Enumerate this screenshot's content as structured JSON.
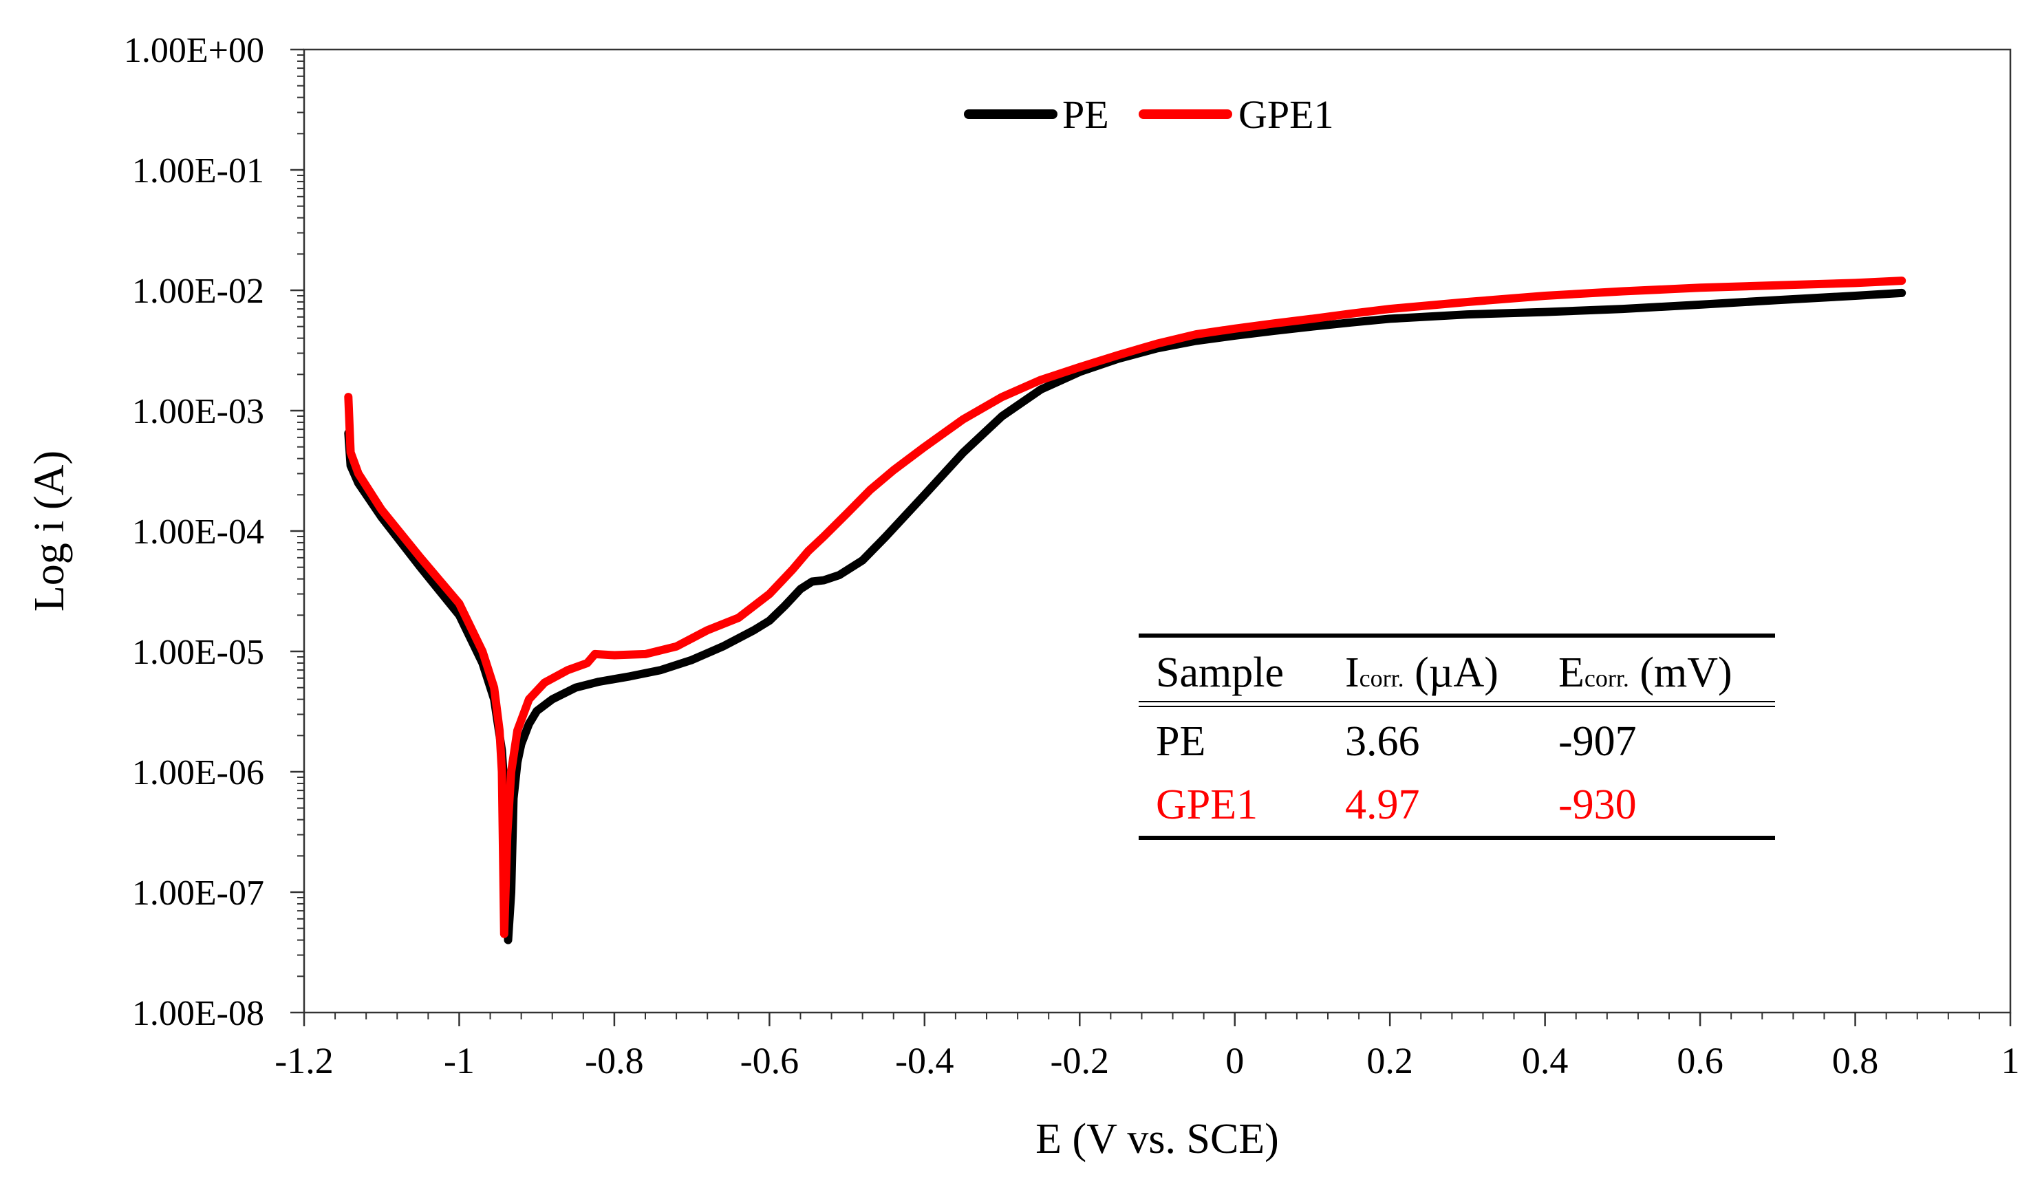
{
  "chart_data": {
    "type": "line",
    "title": "",
    "xlabel": "E (V vs. SCE)",
    "ylabel": "Log i (A)",
    "xlim": [
      -1.2,
      1
    ],
    "x_ticks": [
      -1.2,
      -1,
      -0.8,
      -0.6,
      -0.4,
      -0.2,
      0,
      0.2,
      0.4,
      0.6,
      0.8,
      1
    ],
    "x_tick_labels": [
      "-1.2",
      "-1",
      "-0.8",
      "-0.6",
      "-0.4",
      "-0.2",
      "0",
      "0.2",
      "0.4",
      "0.6",
      "0.8",
      "1"
    ],
    "y_scale": "log",
    "ylim": [
      1e-08,
      1
    ],
    "y_ticks": [
      1e-08,
      1e-07,
      1e-06,
      1e-05,
      0.0001,
      0.001,
      0.01,
      0.1,
      1
    ],
    "y_tick_labels": [
      "1.00E-08",
      "1.00E-07",
      "1.00E-06",
      "1.00E-05",
      "1.00E-04",
      "1.00E-03",
      "1.00E-02",
      "1.00E-01",
      "1.00E+00"
    ],
    "grid": false,
    "legend_position": "top-center",
    "series": [
      {
        "name": "PE",
        "color": "#000000",
        "x": [
          -1.143,
          -1.14,
          -1.13,
          -1.1,
          -1.05,
          -1.0,
          -0.97,
          -0.955,
          -0.945,
          -0.94,
          -0.937,
          -0.933,
          -0.93,
          -0.925,
          -0.92,
          -0.91,
          -0.9,
          -0.88,
          -0.85,
          -0.82,
          -0.78,
          -0.74,
          -0.7,
          -0.66,
          -0.62,
          -0.6,
          -0.58,
          -0.56,
          -0.545,
          -0.53,
          -0.51,
          -0.48,
          -0.45,
          -0.4,
          -0.35,
          -0.3,
          -0.25,
          -0.2,
          -0.15,
          -0.1,
          -0.05,
          0.0,
          0.05,
          0.1,
          0.15,
          0.2,
          0.3,
          0.4,
          0.5,
          0.6,
          0.7,
          0.8,
          0.86
        ],
        "values": [
          0.00065,
          0.00035,
          0.00025,
          0.00013,
          5e-05,
          2e-05,
          8e-06,
          4e-06,
          1.5e-06,
          5e-07,
          4e-08,
          1e-07,
          6e-07,
          1.2e-06,
          1.7e-06,
          2.5e-06,
          3.2e-06,
          4e-06,
          5e-06,
          5.6e-06,
          6.2e-06,
          7e-06,
          8.5e-06,
          1.1e-05,
          1.5e-05,
          1.8e-05,
          2.4e-05,
          3.3e-05,
          3.8e-05,
          3.9e-05,
          4.3e-05,
          5.7e-05,
          9e-05,
          0.0002,
          0.00045,
          0.0009,
          0.0015,
          0.0021,
          0.0027,
          0.0033,
          0.0038,
          0.0042,
          0.0046,
          0.005,
          0.0054,
          0.0058,
          0.0063,
          0.0066,
          0.007,
          0.0076,
          0.0083,
          0.009,
          0.0095
        ]
      },
      {
        "name": "GPE1",
        "color": "#ff0000",
        "x": [
          -1.143,
          -1.14,
          -1.13,
          -1.1,
          -1.05,
          -1.0,
          -0.97,
          -0.955,
          -0.948,
          -0.945,
          -0.942,
          -0.938,
          -0.933,
          -0.925,
          -0.91,
          -0.89,
          -0.86,
          -0.835,
          -0.825,
          -0.8,
          -0.76,
          -0.72,
          -0.68,
          -0.64,
          -0.6,
          -0.57,
          -0.55,
          -0.53,
          -0.5,
          -0.47,
          -0.44,
          -0.4,
          -0.35,
          -0.3,
          -0.25,
          -0.2,
          -0.15,
          -0.1,
          -0.05,
          0.0,
          0.05,
          0.1,
          0.15,
          0.2,
          0.3,
          0.4,
          0.5,
          0.6,
          0.7,
          0.8,
          0.86
        ],
        "values": [
          0.0013,
          0.00045,
          0.0003,
          0.00015,
          6e-05,
          2.5e-05,
          1e-05,
          5e-06,
          2.2e-06,
          1e-06,
          4.5e-08,
          3e-07,
          1e-06,
          2.2e-06,
          4e-06,
          5.5e-06,
          7e-06,
          8e-06,
          9.5e-06,
          9.3e-06,
          9.5e-06,
          1.1e-05,
          1.5e-05,
          1.9e-05,
          3e-05,
          4.8e-05,
          6.8e-05,
          9e-05,
          0.00014,
          0.00022,
          0.00032,
          0.0005,
          0.00085,
          0.0013,
          0.0018,
          0.0023,
          0.0029,
          0.0036,
          0.0043,
          0.0048,
          0.0053,
          0.0058,
          0.0064,
          0.007,
          0.008,
          0.009,
          0.0098,
          0.0105,
          0.011,
          0.0115,
          0.012
        ]
      }
    ],
    "inset_table": {
      "headers": [
        {
          "main": "Sample",
          "sub": "",
          "unit": ""
        },
        {
          "main": "I",
          "sub": "corr.",
          "unit": " (µA)"
        },
        {
          "main": "E",
          "sub": "corr.",
          "unit": " (mV)"
        }
      ],
      "rows": [
        {
          "color": "#000000",
          "cells": [
            "PE",
            "3.66",
            "-907"
          ]
        },
        {
          "color": "#ff0000",
          "cells": [
            "GPE1",
            "4.97",
            "-930"
          ]
        }
      ]
    }
  }
}
